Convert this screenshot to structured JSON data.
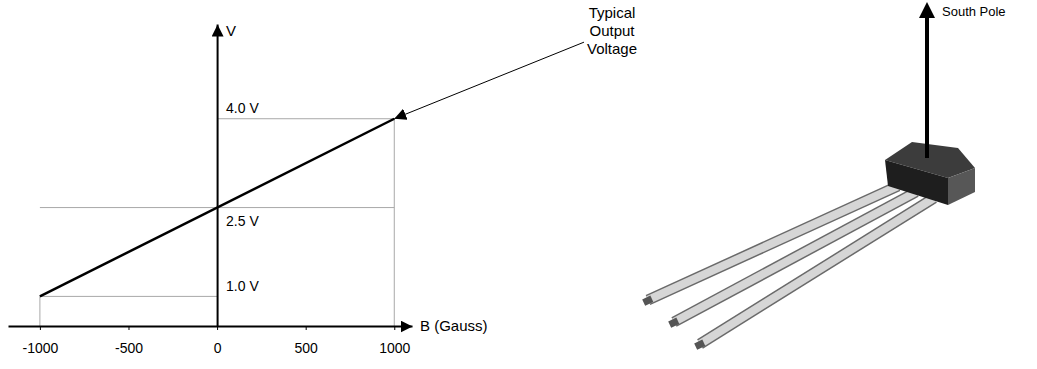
{
  "chart_data": {
    "type": "line",
    "x": [
      -1000,
      1000
    ],
    "values": [
      1.0,
      4.0
    ],
    "color": "#000000",
    "xlim": [
      -1180,
      1100
    ],
    "ylim": [
      0.5,
      5.6
    ],
    "xticks": [
      -1000,
      -500,
      0,
      500,
      1000
    ],
    "yticks": [
      {
        "value": 1,
        "label": "1.0 V"
      },
      {
        "value": 2.5,
        "label": "2.5 V"
      },
      {
        "value": 4,
        "label": "4.0 V"
      }
    ],
    "x_label": "B (Gauss)",
    "y_label": "V",
    "grid": true,
    "annotations": [
      {
        "text": "Typical Output Voltage",
        "x": 1000,
        "y": 4
      }
    ]
  },
  "diagram": {
    "arrow_label": "South Pole"
  }
}
